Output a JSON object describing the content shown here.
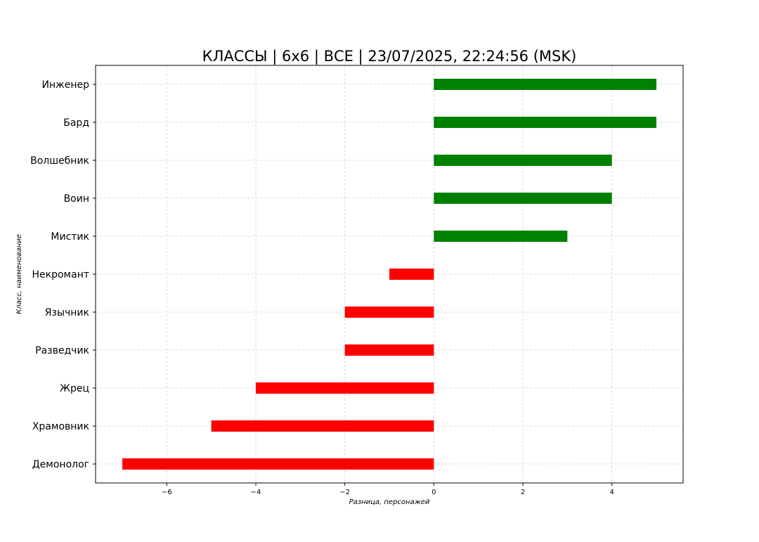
{
  "chart_data": {
    "type": "bar",
    "orientation": "horizontal",
    "title": "КЛАССЫ | 6x6 | ВСЕ | 23/07/2025, 22:24:56 (MSK)",
    "xlabel": "Разница, персонажей",
    "ylabel": "Класс, наименование",
    "categories": [
      "Инженер",
      "Бард",
      "Волшебник",
      "Воин",
      "Мистик",
      "Некромант",
      "Язычник",
      "Разведчик",
      "Жрец",
      "Храмовник",
      "Демонолог"
    ],
    "values": [
      5,
      5,
      4,
      4,
      3,
      -1,
      -2,
      -2,
      -4,
      -5,
      -7
    ],
    "xlim": [
      -7.6,
      5.6
    ],
    "xticks": [
      -6,
      -4,
      -2,
      0,
      2,
      4
    ],
    "xtick_labels": [
      "−6",
      "−4",
      "−2",
      "0",
      "2",
      "4"
    ],
    "grid": true,
    "colors": {
      "positive": "#008000",
      "negative": "#ff0000"
    }
  }
}
